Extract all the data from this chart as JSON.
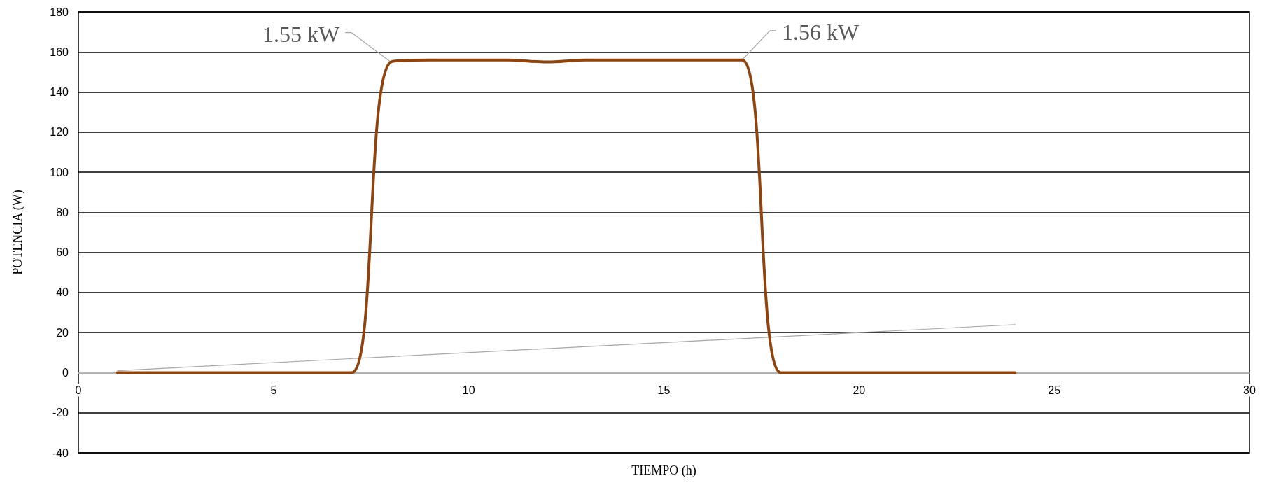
{
  "chart_data": {
    "type": "line",
    "xlabel": "TIEMPO (h)",
    "ylabel": "POTENCIA (W)",
    "xlim": [
      0,
      30
    ],
    "xticks": [
      0,
      5,
      10,
      15,
      20,
      25,
      30
    ],
    "ylim": [
      -40,
      180
    ],
    "yticks": [
      -40,
      -20,
      0,
      20,
      40,
      60,
      80,
      100,
      120,
      140,
      160,
      180
    ],
    "grid": "y",
    "marker": "none",
    "line_style": "solid",
    "series": [
      {
        "color": "#8b4513",
        "x": [
          1,
          2,
          3,
          4,
          5,
          6,
          7,
          8,
          9,
          10,
          11,
          12,
          13,
          14,
          15,
          16,
          17,
          18,
          19,
          20,
          21,
          22,
          23,
          24
        ],
        "values": [
          0,
          0,
          0,
          0,
          0,
          0,
          0,
          155,
          156,
          156,
          156,
          155,
          156,
          156,
          156,
          156,
          156,
          0,
          0,
          0,
          0,
          0,
          0,
          0
        ]
      },
      {
        "color": "#a6a6a6",
        "x": [
          1,
          24
        ],
        "values": [
          1,
          24
        ]
      }
    ],
    "annotations": [
      {
        "text": "1.55 kW",
        "x": 8,
        "y": 155
      },
      {
        "text": "1.56 kW",
        "x": 17,
        "y": 156
      }
    ]
  }
}
